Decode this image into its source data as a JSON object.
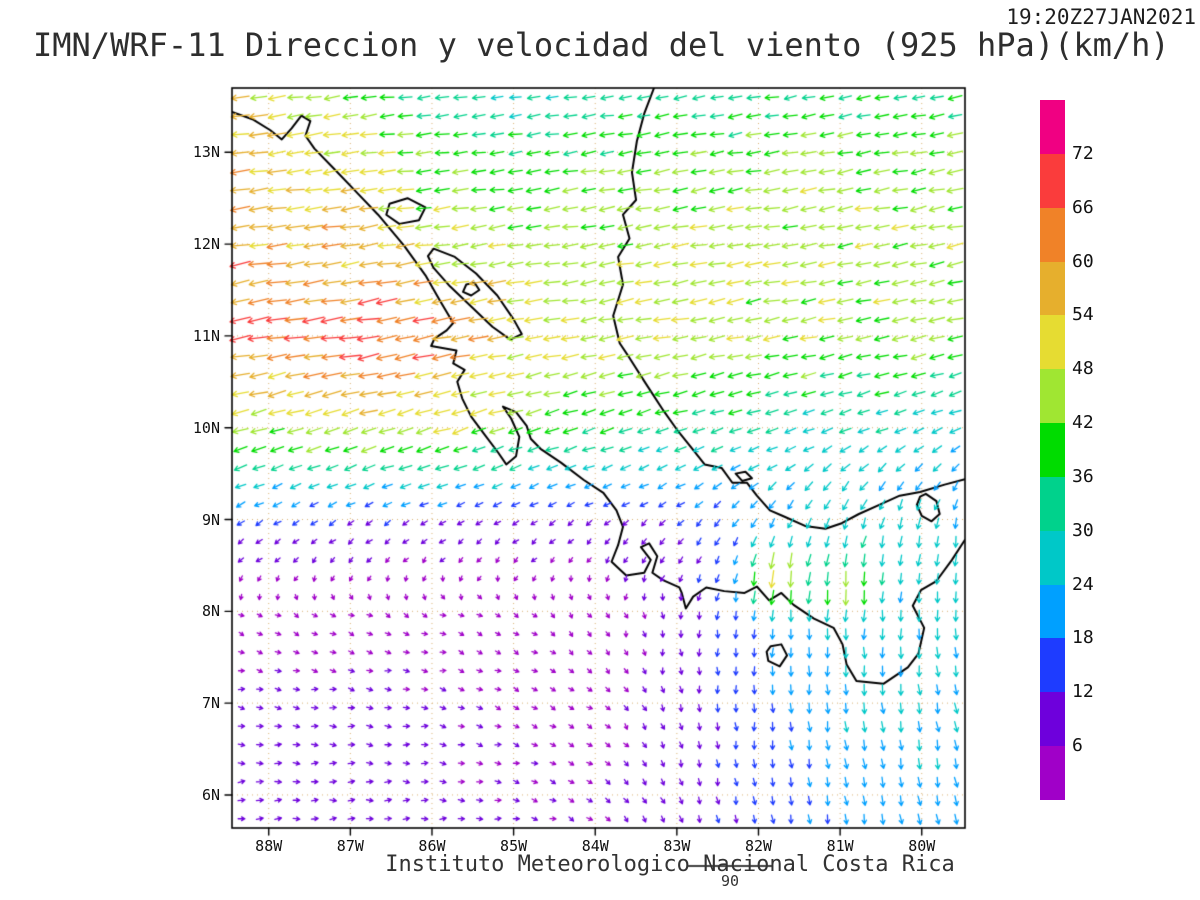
{
  "header": {
    "title": "IMN/WRF-11 Direccion y velocidad del viento (925 hPa)(km/h)",
    "timestamp": "19:20Z27JAN2021"
  },
  "footer": {
    "institute": "Instituto Meteorologico Nacional Costa Rica",
    "reference_arrow_label": "90"
  },
  "axes": {
    "lat_ticks": [
      {
        "value": 13,
        "label": "13N"
      },
      {
        "value": 12,
        "label": "12N"
      },
      {
        "value": 11,
        "label": "11N"
      },
      {
        "value": 10,
        "label": "10N"
      },
      {
        "value": 9,
        "label": "9N"
      },
      {
        "value": 8,
        "label": "8N"
      },
      {
        "value": 7,
        "label": "7N"
      },
      {
        "value": 6,
        "label": "6N"
      }
    ],
    "lon_ticks": [
      {
        "value": 88,
        "label": "88W"
      },
      {
        "value": 87,
        "label": "87W"
      },
      {
        "value": 86,
        "label": "86W"
      },
      {
        "value": 85,
        "label": "85W"
      },
      {
        "value": 84,
        "label": "84W"
      },
      {
        "value": 83,
        "label": "83W"
      },
      {
        "value": 82,
        "label": "82W"
      },
      {
        "value": 81,
        "label": "81W"
      },
      {
        "value": 80,
        "label": "80W"
      }
    ]
  },
  "colorbar": {
    "unit": "km/h",
    "labels_top_to_bottom": [
      "72",
      "66",
      "60",
      "54",
      "48",
      "42",
      "36",
      "30",
      "24",
      "18",
      "12",
      "6"
    ],
    "colors_low_to_high": [
      "#a000c8",
      "#6e00dc",
      "#1e3cff",
      "#00a0ff",
      "#00c8c8",
      "#00d28c",
      "#00dc00",
      "#a0e632",
      "#e6dc32",
      "#e6af2d",
      "#f08228",
      "#fa3c3c",
      "#f00082"
    ]
  },
  "chart_data": {
    "type": "vector_field_map",
    "model": "IMN/WRF-11",
    "variable": "Direccion y velocidad del viento",
    "level": "925 hPa",
    "units": "km/h",
    "valid_time": "19:20Z27JAN2021",
    "lon_range_w": [
      88.45,
      79.47
    ],
    "lat_range": [
      5.64,
      13.7
    ],
    "speed_levels": [
      6,
      12,
      18,
      24,
      30,
      36,
      42,
      48,
      54,
      60,
      66,
      72
    ],
    "palette": [
      "#a000c8",
      "#6e00dc",
      "#1e3cff",
      "#00a0ff",
      "#00c8c8",
      "#00d28c",
      "#00dc00",
      "#a0e632",
      "#e6dc32",
      "#e6af2d",
      "#f08228",
      "#fa3c3c",
      "#f00082"
    ],
    "wind_grid": {
      "lonw": [
        89,
        88,
        87,
        86,
        85,
        84,
        83,
        82,
        81,
        80,
        79
      ],
      "lat": [
        14,
        13,
        12,
        11,
        10,
        9,
        8,
        7,
        6,
        5
      ],
      "u_kmh": [
        [
          -48,
          -45,
          -35,
          -28,
          -26,
          -26,
          -27,
          -28,
          -28,
          -30,
          -30
        ],
        [
          -58,
          -56,
          -50,
          -40,
          -36,
          -38,
          -40,
          -41,
          -42,
          -42,
          -42
        ],
        [
          -60,
          -58,
          -55,
          -48,
          -45,
          -44,
          -46,
          -46,
          -45,
          -44,
          -44
        ],
        [
          -62,
          -64,
          -68,
          -64,
          -52,
          -48,
          -46,
          -45,
          -44,
          -42,
          -40
        ],
        [
          -45,
          -44,
          -46,
          -48,
          -42,
          -36,
          -32,
          -30,
          -28,
          -26,
          -25
        ],
        [
          -14,
          -12,
          -11,
          -10,
          -9,
          -8,
          -10,
          -12,
          -10,
          -6,
          -4
        ],
        [
          2,
          3,
          4,
          4,
          3,
          2,
          0,
          -2,
          -2,
          0,
          2
        ],
        [
          6,
          7,
          7,
          6,
          5,
          4,
          2,
          0,
          2,
          3,
          4
        ],
        [
          9,
          9,
          8,
          7,
          6,
          5,
          3,
          2,
          3,
          4,
          5
        ],
        [
          10,
          10,
          9,
          8,
          6,
          5,
          3,
          2,
          3,
          4,
          5
        ]
      ],
      "v_kmh": [
        [
          -6,
          -5,
          -4,
          -3,
          -3,
          -4,
          -4,
          -5,
          -5,
          -6,
          -6
        ],
        [
          -8,
          -8,
          -7,
          -5,
          -5,
          -6,
          -7,
          -7,
          -8,
          -8,
          -8
        ],
        [
          -9,
          -9,
          -8,
          -7,
          -7,
          -7,
          -8,
          -8,
          -9,
          -9,
          -9
        ],
        [
          -10,
          -11,
          -12,
          -11,
          -9,
          -9,
          -9,
          -9,
          -9,
          -9,
          -9
        ],
        [
          -14,
          -13,
          -14,
          -15,
          -13,
          -11,
          -10,
          -10,
          -10,
          -10,
          -10
        ],
        [
          -8,
          -7,
          -7,
          -6,
          -6,
          -6,
          -9,
          -16,
          -26,
          -26,
          -24
        ],
        [
          -2,
          -2,
          -2,
          -2,
          -2,
          -3,
          -8,
          -18,
          -26,
          -26,
          -24
        ],
        [
          -1,
          -1,
          -1,
          -1,
          -2,
          -3,
          -8,
          -16,
          -24,
          -24,
          -22
        ],
        [
          1,
          1,
          0,
          0,
          -1,
          -3,
          -8,
          -14,
          -20,
          -22,
          -20
        ],
        [
          2,
          1,
          1,
          0,
          -1,
          -3,
          -8,
          -14,
          -18,
          -20,
          -18
        ]
      ]
    },
    "local_jets": [
      {
        "lonw": 81.8,
        "lat": 8.38,
        "amp": 32,
        "sigma": 0.25
      },
      {
        "lonw": 80.95,
        "lat": 8.3,
        "amp": 22,
        "sigma": 0.2
      }
    ],
    "coastlines": [
      {
        "closed": false,
        "pts": [
          [
            88.45,
            13.44
          ],
          [
            88.2,
            13.36
          ],
          [
            87.98,
            13.24
          ],
          [
            87.84,
            13.14
          ],
          [
            87.72,
            13.26
          ],
          [
            87.6,
            13.4
          ],
          [
            87.49,
            13.34
          ],
          [
            87.55,
            13.18
          ],
          [
            87.44,
            13.04
          ],
          [
            87.2,
            12.82
          ],
          [
            86.94,
            12.58
          ],
          [
            86.66,
            12.32
          ],
          [
            86.34,
            11.98
          ],
          [
            86.08,
            11.66
          ],
          [
            85.9,
            11.38
          ],
          [
            85.74,
            11.14
          ],
          [
            85.82,
            11.06
          ],
          [
            85.97,
            10.97
          ],
          [
            86.01,
            10.89
          ],
          [
            85.7,
            10.84
          ],
          [
            85.74,
            10.7
          ],
          [
            85.6,
            10.63
          ],
          [
            85.69,
            10.5
          ],
          [
            85.63,
            10.32
          ],
          [
            85.52,
            10.12
          ],
          [
            85.36,
            9.93
          ],
          [
            85.19,
            9.73
          ],
          [
            85.09,
            9.6
          ],
          [
            84.97,
            9.69
          ],
          [
            84.93,
            9.9
          ],
          [
            85.03,
            10.1
          ],
          [
            85.13,
            10.23
          ],
          [
            84.97,
            10.17
          ],
          [
            84.84,
            10.02
          ],
          [
            84.79,
            9.88
          ],
          [
            84.67,
            9.77
          ],
          [
            84.42,
            9.62
          ],
          [
            84.14,
            9.43
          ],
          [
            83.9,
            9.29
          ],
          [
            83.74,
            9.1
          ],
          [
            83.66,
            8.92
          ],
          [
            83.72,
            8.72
          ],
          [
            83.8,
            8.54
          ],
          [
            83.62,
            8.39
          ],
          [
            83.4,
            8.42
          ],
          [
            83.32,
            8.56
          ],
          [
            83.44,
            8.7
          ],
          [
            83.34,
            8.74
          ],
          [
            83.24,
            8.6
          ],
          [
            83.3,
            8.42
          ],
          [
            83.17,
            8.34
          ],
          [
            82.97,
            8.26
          ],
          [
            82.94,
            8.2
          ],
          [
            82.89,
            8.03
          ],
          [
            82.8,
            8.16
          ],
          [
            82.64,
            8.26
          ],
          [
            82.42,
            8.22
          ],
          [
            82.17,
            8.2
          ],
          [
            82.02,
            8.27
          ],
          [
            81.87,
            8.12
          ],
          [
            81.72,
            8.2
          ],
          [
            81.57,
            8.07
          ],
          [
            81.32,
            7.92
          ],
          [
            81.08,
            7.82
          ],
          [
            80.97,
            7.64
          ],
          [
            80.92,
            7.42
          ],
          [
            80.8,
            7.24
          ],
          [
            80.47,
            7.21
          ],
          [
            80.17,
            7.39
          ],
          [
            80.04,
            7.54
          ],
          [
            79.97,
            7.82
          ],
          [
            80.11,
            8.06
          ],
          [
            80.01,
            8.23
          ],
          [
            79.82,
            8.33
          ],
          [
            79.63,
            8.56
          ],
          [
            79.47,
            8.78
          ]
        ]
      },
      {
        "closed": false,
        "pts": [
          [
            83.28,
            13.7
          ],
          [
            83.4,
            13.42
          ],
          [
            83.49,
            13.12
          ],
          [
            83.55,
            12.78
          ],
          [
            83.5,
            12.48
          ],
          [
            83.66,
            12.32
          ],
          [
            83.58,
            12.06
          ],
          [
            83.72,
            11.86
          ],
          [
            83.66,
            11.56
          ],
          [
            83.78,
            11.22
          ],
          [
            83.7,
            10.92
          ],
          [
            83.58,
            10.76
          ],
          [
            83.38,
            10.48
          ],
          [
            83.16,
            10.18
          ],
          [
            83.0,
            9.98
          ],
          [
            82.82,
            9.78
          ],
          [
            82.66,
            9.6
          ],
          [
            82.45,
            9.56
          ],
          [
            82.32,
            9.4
          ],
          [
            82.14,
            9.4
          ],
          [
            82.02,
            9.26
          ],
          [
            81.86,
            9.1
          ],
          [
            81.68,
            9.03
          ],
          [
            81.43,
            8.93
          ],
          [
            81.18,
            8.9
          ],
          [
            80.98,
            8.96
          ],
          [
            80.77,
            9.06
          ],
          [
            80.52,
            9.16
          ],
          [
            80.27,
            9.26
          ],
          [
            80.02,
            9.3
          ],
          [
            79.72,
            9.38
          ],
          [
            79.47,
            9.44
          ]
        ]
      },
      {
        "closed": true,
        "pts": [
          [
            85.98,
            11.95
          ],
          [
            85.72,
            11.86
          ],
          [
            85.46,
            11.68
          ],
          [
            85.2,
            11.44
          ],
          [
            85.0,
            11.18
          ],
          [
            84.9,
            11.02
          ],
          [
            85.04,
            10.96
          ],
          [
            85.26,
            11.1
          ],
          [
            85.52,
            11.32
          ],
          [
            85.78,
            11.54
          ],
          [
            85.98,
            11.74
          ],
          [
            86.05,
            11.87
          ]
        ]
      },
      {
        "closed": true,
        "pts": [
          [
            86.52,
            12.44
          ],
          [
            86.3,
            12.5
          ],
          [
            86.08,
            12.4
          ],
          [
            86.16,
            12.26
          ],
          [
            86.4,
            12.22
          ],
          [
            86.56,
            12.32
          ]
        ]
      },
      {
        "closed": true,
        "pts": [
          [
            79.95,
            9.28
          ],
          [
            79.82,
            9.2
          ],
          [
            79.78,
            9.06
          ],
          [
            79.88,
            8.98
          ],
          [
            80.0,
            9.04
          ],
          [
            80.06,
            9.16
          ],
          [
            80.02,
            9.25
          ]
        ]
      },
      {
        "closed": true,
        "pts": [
          [
            81.85,
            7.62
          ],
          [
            81.72,
            7.64
          ],
          [
            81.65,
            7.52
          ],
          [
            81.74,
            7.4
          ],
          [
            81.88,
            7.46
          ],
          [
            81.9,
            7.56
          ]
        ]
      },
      {
        "closed": true,
        "pts": [
          [
            85.58,
            11.56
          ],
          [
            85.48,
            11.58
          ],
          [
            85.42,
            11.5
          ],
          [
            85.52,
            11.44
          ],
          [
            85.62,
            11.48
          ]
        ]
      },
      {
        "closed": true,
        "pts": [
          [
            82.28,
            9.5
          ],
          [
            82.16,
            9.52
          ],
          [
            82.08,
            9.45
          ],
          [
            82.2,
            9.42
          ]
        ]
      }
    ]
  }
}
